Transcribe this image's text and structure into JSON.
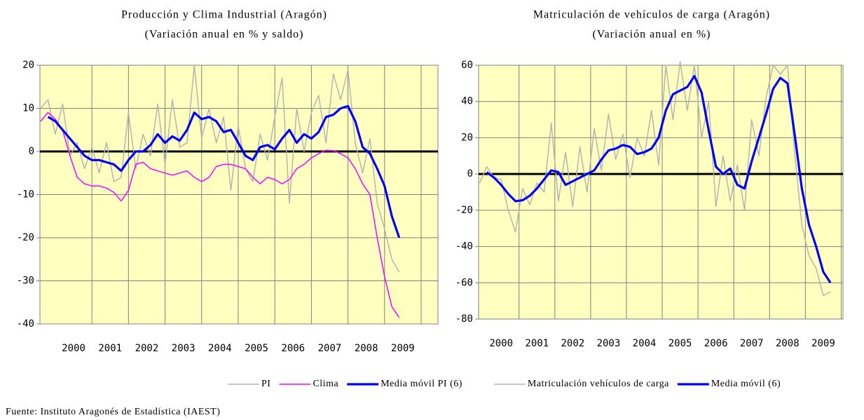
{
  "chart_data": [
    {
      "type": "line",
      "title": "Producción y Clima Industrial (Aragón)",
      "subtitle": "(Variación anual en % y saldo)",
      "x": [
        1999.1,
        1999.3,
        1999.5,
        1999.7,
        1999.9,
        2000.1,
        2000.3,
        2000.5,
        2000.7,
        2000.9,
        2001.1,
        2001.3,
        2001.5,
        2001.7,
        2001.9,
        2002.1,
        2002.3,
        2002.5,
        2002.7,
        2002.9,
        2003.1,
        2003.3,
        2003.5,
        2003.7,
        2003.9,
        2004.1,
        2004.3,
        2004.5,
        2004.7,
        2004.9,
        2005.1,
        2005.3,
        2005.5,
        2005.7,
        2005.9,
        2006.1,
        2006.3,
        2006.5,
        2006.7,
        2006.9,
        2007.1,
        2007.3,
        2007.5,
        2007.7,
        2007.9,
        2008.1,
        2008.3,
        2008.5,
        2008.7,
        2008.9
      ],
      "series": [
        {
          "name": "PI",
          "color": "#b4b4b4",
          "line_width": 1.5,
          "values": [
            10,
            12,
            4,
            11,
            -1,
            2,
            -4,
            1,
            -5,
            2,
            -7,
            -6,
            9,
            -4,
            4,
            -1,
            11,
            -3,
            12,
            1,
            2,
            20,
            3,
            10,
            2,
            8,
            -9,
            6,
            -4,
            -7,
            4,
            -2,
            8,
            17,
            -12,
            10,
            0,
            9,
            13,
            2,
            18,
            12,
            19,
            2,
            -5,
            3,
            -12,
            -18,
            -25,
            -28
          ]
        },
        {
          "name": "Clima",
          "color": "#ff00ff",
          "line_width": 1.5,
          "values": [
            7,
            9,
            7.5,
            5,
            -1,
            -6,
            -7.5,
            -8,
            -8,
            -8.5,
            -9.5,
            -11.5,
            -9,
            -3,
            -2.5,
            -4,
            -4.5,
            -5,
            -5.5,
            -5,
            -4.5,
            -6,
            -7,
            -6,
            -3.5,
            -3,
            -3,
            -3.5,
            -4,
            -6,
            -7.5,
            -6,
            -6.5,
            -7.5,
            -6.5,
            -4,
            -3,
            -1.5,
            -0.5,
            0.3,
            0.2,
            -0.5,
            -1.5,
            -4,
            -7.5,
            -10,
            -20,
            -29,
            -36,
            -38.5
          ]
        },
        {
          "name": "Media móvil PI (6)",
          "color": "#0000ff",
          "line_width": 3.2,
          "values": [
            null,
            8,
            7,
            5,
            3,
            1,
            -1,
            -2,
            -2,
            -2.5,
            -3,
            -4.5,
            -2,
            0,
            0,
            1.5,
            4,
            2,
            3.5,
            2.5,
            5,
            9,
            7.5,
            8,
            7,
            4.5,
            5,
            2,
            -1,
            -2,
            1,
            1.5,
            0.5,
            3,
            5,
            2,
            4,
            3,
            4.5,
            8,
            8.5,
            10,
            10.5,
            7,
            1,
            -0.5,
            -4,
            -8,
            -15,
            -20
          ]
        }
      ],
      "xlim": [
        1999.08,
        2009.96
      ],
      "xticks": [
        2000,
        2001,
        2002,
        2003,
        2004,
        2005,
        2006,
        2007,
        2008,
        2009
      ],
      "ylim": [
        -40,
        20
      ],
      "yticks": [
        -40,
        -30,
        -20,
        -10,
        0,
        10,
        20
      ],
      "grid": true,
      "zero_line": true,
      "background": "#ffffc0"
    },
    {
      "type": "line",
      "title": "Matriculación de vehículos de carga (Aragón)",
      "subtitle": "(Variación anual en %)",
      "x": [
        1999.4,
        1999.6,
        1999.8,
        2000.0,
        2000.2,
        2000.4,
        2000.6,
        2000.8,
        2001.0,
        2001.2,
        2001.4,
        2001.6,
        2001.8,
        2002.0,
        2002.2,
        2002.4,
        2002.6,
        2002.8,
        2003.0,
        2003.2,
        2003.4,
        2003.6,
        2003.8,
        2004.0,
        2004.2,
        2004.4,
        2004.6,
        2004.8,
        2005.0,
        2005.2,
        2005.4,
        2005.6,
        2005.8,
        2006.0,
        2006.2,
        2006.4,
        2006.6,
        2006.8,
        2007.0,
        2007.2,
        2007.4,
        2007.6,
        2007.8,
        2008.0,
        2008.2,
        2008.4,
        2008.6,
        2008.8,
        2009.0,
        2009.2
      ],
      "series": [
        {
          "name": "Matriculación vehículos de carga",
          "color": "#b4b4b4",
          "line_width": 1.5,
          "values": [
            -5,
            4,
            -2,
            -3,
            -20,
            -32,
            -8,
            -17,
            -5,
            -10,
            28,
            -15,
            12,
            -18,
            15,
            -10,
            25,
            2,
            33,
            8,
            22,
            -2,
            20,
            10,
            35,
            5,
            60,
            30,
            62,
            35,
            60,
            20,
            40,
            -18,
            10,
            -15,
            5,
            -20,
            30,
            10,
            42,
            60,
            55,
            60,
            12,
            -28,
            -45,
            -52,
            -67,
            -65
          ]
        },
        {
          "name": "Media móvil (6)",
          "color": "#0000ff",
          "line_width": 3.2,
          "values": [
            null,
            1,
            -2,
            -6,
            -11,
            -15,
            -14.5,
            -12,
            -8,
            -3,
            2,
            1,
            -6,
            -4,
            -2,
            0,
            2,
            8,
            13,
            14,
            16,
            15,
            11,
            12,
            14,
            20,
            35,
            44,
            46,
            48,
            54,
            45,
            24,
            4,
            0,
            3,
            -6,
            -8,
            7,
            20,
            33,
            47,
            53,
            50,
            22,
            -8,
            -28,
            -40,
            -54,
            -60
          ]
        }
      ],
      "xlim": [
        1999.37,
        2009.55
      ],
      "xticks": [
        2000,
        2001,
        2002,
        2003,
        2004,
        2005,
        2006,
        2007,
        2008,
        2009
      ],
      "ylim": [
        -80,
        60
      ],
      "yticks": [
        -80,
        -60,
        -40,
        -20,
        0,
        20,
        40,
        60
      ],
      "grid": true,
      "zero_line": true,
      "background": "#ffffc0"
    }
  ],
  "source": "Fuente: Instituto Aragonés de Estadística (IAEST)"
}
